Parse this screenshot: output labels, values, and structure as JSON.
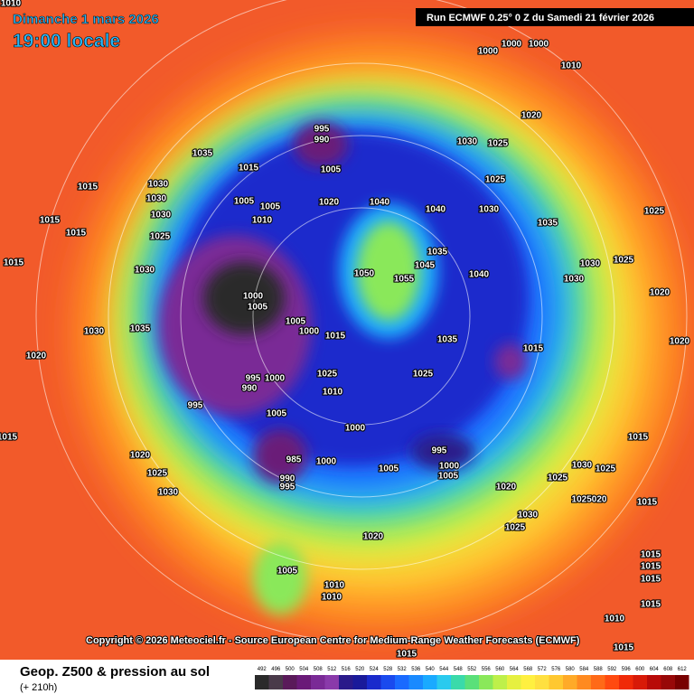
{
  "header": {
    "date": "Dimanche 1 mars 2026",
    "time": "19:00 locale",
    "run": "Run ECMWF 0.25° 0 Z du Samedi 21 février 2026"
  },
  "copyright": "Copyright © 2026 Meteociel.fr - Source European Centre for Medium-Range Weather Forecasts (ECMWF)",
  "footer": {
    "title": "Geop. Z500 & pression au sol",
    "lead": "(+ 210h)"
  },
  "legend": {
    "values": [
      492,
      496,
      500,
      504,
      508,
      512,
      516,
      520,
      524,
      528,
      532,
      536,
      540,
      544,
      548,
      552,
      556,
      560,
      564,
      568,
      572,
      576,
      580,
      584,
      588,
      592,
      596,
      600,
      604,
      608,
      612
    ],
    "colors": [
      "#2a2a2a",
      "#4a3a4a",
      "#5a1a5a",
      "#6a1a78",
      "#7a2a96",
      "#8a3aaa",
      "#2a1a8a",
      "#1a1a9a",
      "#1a2acc",
      "#1a4aee",
      "#1a6aff",
      "#1a8aff",
      "#1aaaff",
      "#2acaee",
      "#3adaaa",
      "#5ae07a",
      "#8ae85a",
      "#bef04a",
      "#e6f040",
      "#fff040",
      "#ffe040",
      "#ffc830",
      "#ffaa28",
      "#ff8a20",
      "#ff6a18",
      "#ff4a10",
      "#f02a08",
      "#d81a08",
      "#b80a08",
      "#980808",
      "#780000"
    ]
  },
  "isobars": [
    "1010",
    "1035",
    "1015",
    "995",
    "990",
    "1005",
    "1030",
    "1015",
    "1030",
    "1005",
    "1005",
    "1020",
    "1040",
    "1040",
    "1030",
    "1035",
    "1025",
    "1025",
    "1030",
    "1025",
    "1020",
    "1000",
    "1000",
    "1000",
    "1010",
    "1015",
    "1015",
    "1030",
    "1025",
    "1010",
    "1015",
    "1030",
    "1050",
    "1055",
    "1045",
    "1035",
    "1040",
    "1030",
    "1030",
    "1025",
    "1000",
    "1005",
    "1020",
    "1035",
    "1030",
    "1005",
    "1000",
    "1015",
    "1035",
    "1015",
    "1020",
    "995",
    "990",
    "1000",
    "1025",
    "1025",
    "1010",
    "995",
    "1005",
    "1000",
    "995",
    "1000",
    "1005",
    "1005",
    "1000",
    "985",
    "990",
    "995",
    "1020",
    "1025",
    "1030",
    "1020",
    "1025",
    "1030",
    "1025",
    "1025020",
    "1015",
    "1030",
    "1025",
    "1020",
    "1005",
    "1010",
    "1010",
    "1015",
    "1015",
    "1015",
    "1015",
    "1010",
    "1015",
    "1015",
    "1015",
    "1015",
    "1020"
  ]
}
